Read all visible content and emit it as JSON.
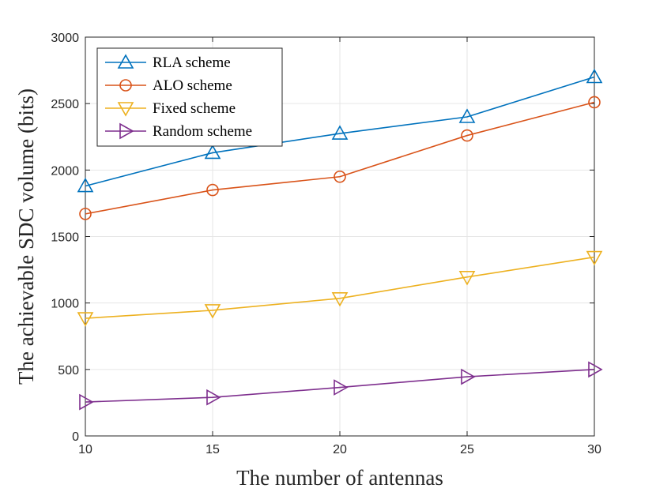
{
  "chart_data": {
    "type": "line",
    "title": "",
    "xlabel": "The number of antennas",
    "ylabel": "The achievable SDC volume (bits)",
    "x": [
      10,
      15,
      20,
      25,
      30
    ],
    "xlim": [
      10,
      30
    ],
    "ylim": [
      0,
      3000
    ],
    "xticks": [
      10,
      15,
      20,
      25,
      30
    ],
    "yticks": [
      0,
      500,
      1000,
      1500,
      2000,
      2500,
      3000
    ],
    "grid": true,
    "legend_position": "top-left",
    "series": [
      {
        "name": "RLA scheme",
        "values": [
          1880,
          2130,
          2275,
          2400,
          2700
        ],
        "color": "#0072BD",
        "marker": "triangle-up"
      },
      {
        "name": "ALO scheme",
        "values": [
          1670,
          1850,
          1950,
          2260,
          2510
        ],
        "color": "#D95319",
        "marker": "circle"
      },
      {
        "name": "Fixed scheme",
        "values": [
          885,
          945,
          1035,
          1195,
          1345
        ],
        "color": "#EDB120",
        "marker": "triangle-down"
      },
      {
        "name": "Random scheme",
        "values": [
          255,
          290,
          365,
          445,
          500
        ],
        "color": "#7E2F8E",
        "marker": "triangle-right"
      }
    ]
  }
}
